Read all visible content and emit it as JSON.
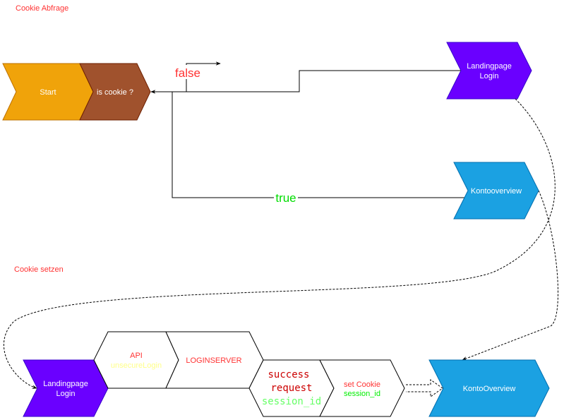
{
  "sections": {
    "query_title": "Cookie Abfrage",
    "set_title": "Cookie setzen"
  },
  "nodes": {
    "start": "Start",
    "is_cookie": "is cookie ?",
    "landing_top": [
      "Landingpage",
      "Login"
    ],
    "konto_top": "Kontooverview",
    "landing_bottom": [
      "Landingpage",
      "Login"
    ],
    "api": [
      "API",
      "unsecureLogin"
    ],
    "loginserver": "LOGINSERVER",
    "success": [
      "success",
      "request",
      "session_id"
    ],
    "set_cookie": [
      "set Cookie",
      "session_id"
    ],
    "konto_bottom": "KontoOverview"
  },
  "edges": {
    "false_label": "false",
    "true_label": "true"
  },
  "colors": {
    "red_text": "#ff3333",
    "orange": "#f0a30a",
    "brown": "#a0522d",
    "purple": "#6a00ff",
    "blue": "#1ba1e2",
    "green": "#00ff00"
  }
}
